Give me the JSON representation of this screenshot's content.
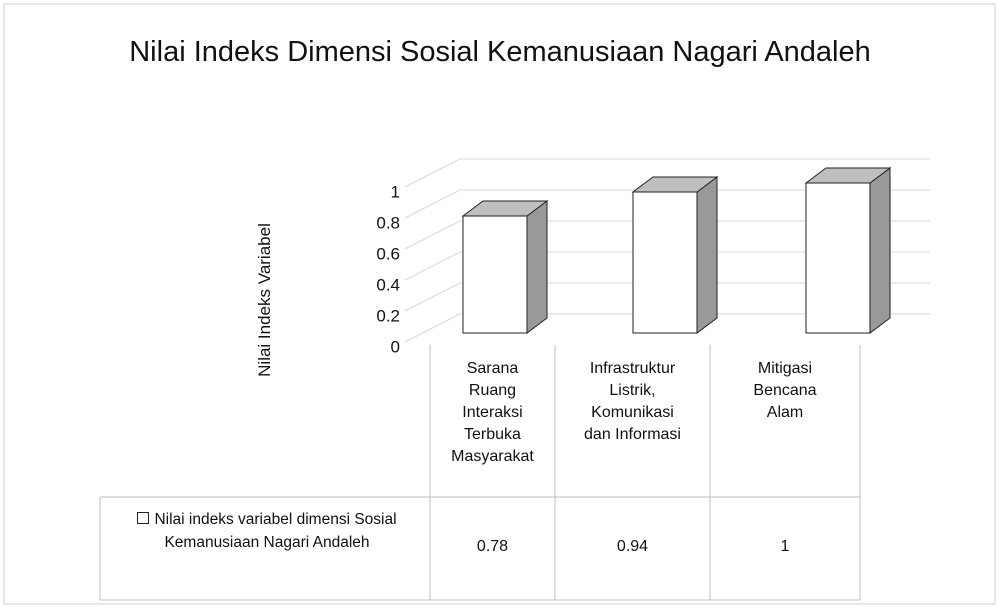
{
  "chart_data": {
    "type": "bar",
    "title": "Nilai  Indeks Dimensi Sosial Kemanusiaan Nagari Andaleh",
    "y_label": "Nilai Indeks Variabel",
    "categories": [
      "Sarana Ruang Interaksi Terbuka Masyarakat",
      "Infrastruktur Listrik, Komunikasi dan Informasi",
      "Mitigasi Bencana Alam"
    ],
    "series": [
      {
        "name": "Nilai indeks variabel dimensi Sosial Kemanusiaan Nagari Andaleh",
        "color": "#ffffff",
        "values": [
          0.78,
          0.94,
          1
        ]
      }
    ],
    "ylim": [
      0,
      1
    ],
    "yticks": [
      0,
      0.2,
      0.4,
      0.6,
      0.8,
      1
    ],
    "grid": true,
    "data_table": true
  }
}
